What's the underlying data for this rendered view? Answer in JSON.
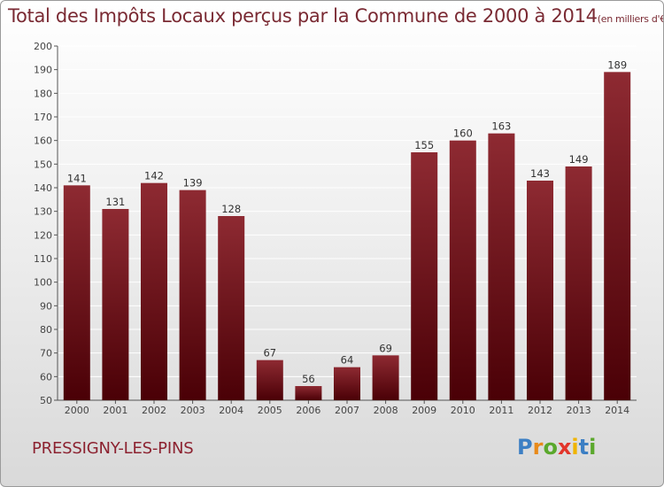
{
  "header": {
    "title": "Total des Impôts Locaux perçus par la Commune de 2000 à 2014",
    "unit": "(en milliers d'€)"
  },
  "footer": {
    "commune": "PRESSIGNY-LES-PINS",
    "logo_letters": [
      "P",
      "r",
      "o",
      "x",
      "i",
      "t",
      "i"
    ]
  },
  "colors": {
    "bar_top": "#8e2a32",
    "bar_bottom": "#4a0006",
    "title": "#7a2a33",
    "grid": "#ffffff"
  },
  "chart_data": {
    "type": "bar",
    "title": "Total des Impôts Locaux perçus par la Commune de 2000 à 2014",
    "xlabel": "",
    "ylabel": "",
    "categories": [
      "2000",
      "2001",
      "2002",
      "2003",
      "2004",
      "2005",
      "2006",
      "2007",
      "2008",
      "2009",
      "2010",
      "2011",
      "2012",
      "2013",
      "2014"
    ],
    "values": [
      141,
      131,
      142,
      139,
      128,
      67,
      56,
      64,
      69,
      155,
      160,
      163,
      143,
      149,
      189
    ],
    "ylim": [
      50,
      200
    ],
    "yticks": [
      50,
      60,
      70,
      80,
      90,
      100,
      110,
      120,
      130,
      140,
      150,
      160,
      170,
      180,
      190,
      200
    ],
    "grid": true,
    "legend": "none"
  }
}
